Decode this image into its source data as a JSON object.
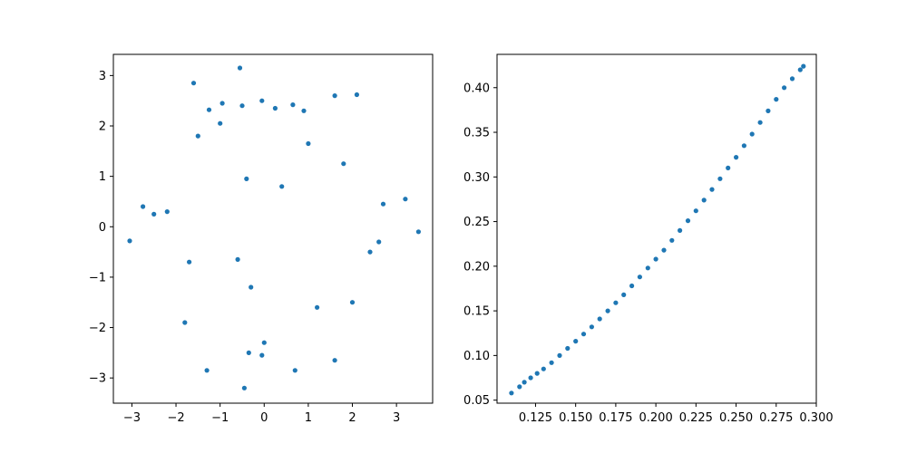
{
  "chart_data": [
    {
      "type": "scatter",
      "title": "",
      "xlabel": "",
      "ylabel": "",
      "xlim": [
        -3.42,
        3.82
      ],
      "ylim": [
        -3.5,
        3.42
      ],
      "xticks": [
        -3,
        -2,
        -1,
        0,
        1,
        2,
        3
      ],
      "xtick_labels": [
        "−3",
        "−2",
        "−1",
        "0",
        "1",
        "2",
        "3"
      ],
      "yticks": [
        -3,
        -2,
        -1,
        0,
        1,
        2,
        3
      ],
      "ytick_labels": [
        "−3",
        "−2",
        "−1",
        "0",
        "1",
        "2",
        "3"
      ],
      "grid": false,
      "color": "#1f77b4",
      "series": [
        {
          "x": [
            -0.55,
            -1.6,
            2.1,
            1.6,
            -0.05,
            -0.95,
            -0.5,
            0.25,
            -1.25,
            -1.0,
            0.9,
            0.65,
            -2.75,
            -3.05,
            3.5,
            3.2,
            2.7,
            2.4,
            -0.45,
            -0.05,
            0.7,
            1.6,
            -1.3,
            -0.35,
            0.0,
            -1.8,
            1.0,
            -1.7,
            -0.3,
            -1.5,
            -2.2,
            2.0,
            1.2,
            1.8,
            -2.5,
            2.6,
            0.4,
            -0.4,
            -0.6
          ],
          "y": [
            3.15,
            2.85,
            2.62,
            2.6,
            2.5,
            2.45,
            2.4,
            2.35,
            2.32,
            2.05,
            2.3,
            2.42,
            0.4,
            -0.28,
            -0.1,
            0.55,
            0.45,
            -0.5,
            -3.2,
            -2.55,
            -2.85,
            -2.65,
            -2.85,
            -2.5,
            -2.3,
            -1.9,
            1.65,
            -0.7,
            -1.2,
            1.8,
            0.3,
            -1.5,
            -1.6,
            1.25,
            0.25,
            -0.3,
            0.8,
            0.95,
            -0.65
          ]
        }
      ]
    },
    {
      "type": "scatter",
      "title": "",
      "xlabel": "",
      "ylabel": "",
      "xlim": [
        0.101,
        0.3
      ],
      "ylim": [
        0.0466,
        0.4373
      ],
      "xticks": [
        0.125,
        0.15,
        0.175,
        0.2,
        0.225,
        0.25,
        0.275,
        0.3
      ],
      "xtick_labels": [
        "0.125",
        "0.150",
        "0.175",
        "0.200",
        "0.225",
        "0.250",
        "0.275",
        "0.300"
      ],
      "yticks": [
        0.05,
        0.1,
        0.15,
        0.2,
        0.25,
        0.3,
        0.35,
        0.4
      ],
      "ytick_labels": [
        "0.05",
        "0.10",
        "0.15",
        "0.20",
        "0.25",
        "0.30",
        "0.35",
        "0.40"
      ],
      "grid": false,
      "color": "#1f77b4",
      "series": [
        {
          "x": [
            0.11,
            0.115,
            0.118,
            0.122,
            0.126,
            0.13,
            0.135,
            0.14,
            0.145,
            0.15,
            0.155,
            0.16,
            0.165,
            0.17,
            0.175,
            0.18,
            0.185,
            0.19,
            0.195,
            0.2,
            0.205,
            0.21,
            0.215,
            0.22,
            0.225,
            0.23,
            0.235,
            0.24,
            0.245,
            0.25,
            0.255,
            0.26,
            0.265,
            0.27,
            0.275,
            0.28,
            0.285,
            0.29,
            0.292
          ],
          "y": [
            0.058,
            0.065,
            0.07,
            0.075,
            0.08,
            0.085,
            0.092,
            0.1,
            0.108,
            0.116,
            0.124,
            0.132,
            0.141,
            0.15,
            0.159,
            0.168,
            0.178,
            0.188,
            0.198,
            0.208,
            0.218,
            0.229,
            0.24,
            0.251,
            0.262,
            0.274,
            0.286,
            0.298,
            0.31,
            0.322,
            0.335,
            0.348,
            0.361,
            0.374,
            0.387,
            0.4,
            0.41,
            0.42,
            0.424
          ]
        }
      ]
    }
  ]
}
